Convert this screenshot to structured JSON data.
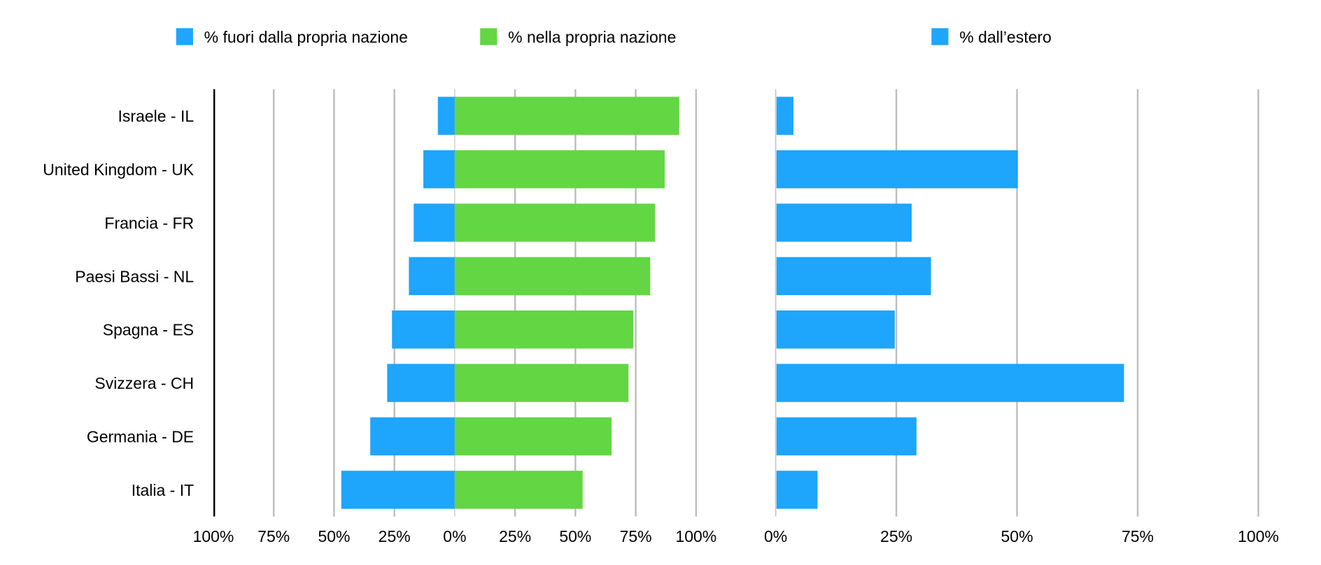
{
  "chart_data": [
    {
      "type": "bar",
      "orientation": "horizontal-diverging",
      "categories": [
        "Israele - IL",
        "United Kingdom - UK",
        "Francia - FR",
        "Paesi Bassi - NL",
        "Spagna - ES",
        "Svizzera - CH",
        "Germania - DE",
        "Italia - IT"
      ],
      "series": [
        {
          "name": "% fuori dalla propria nazione",
          "color": "#1EA5FC",
          "direction": "left",
          "values": [
            7,
            13,
            17,
            19,
            26,
            28,
            35,
            47
          ]
        },
        {
          "name": "% nella propria nazione",
          "color": "#63D643",
          "direction": "right",
          "values": [
            93,
            87,
            83,
            81,
            74,
            72,
            65,
            53
          ]
        }
      ],
      "xlim": [
        -100,
        100
      ],
      "xticks": [
        "100%",
        "75%",
        "50%",
        "25%",
        "0%",
        "25%",
        "50%",
        "75%",
        "100%"
      ],
      "grid": true,
      "legend": "top-left"
    },
    {
      "type": "bar",
      "orientation": "horizontal",
      "categories": [
        "Israele - IL",
        "United Kingdom - UK",
        "Francia - FR",
        "Paesi Bassi - NL",
        "Spagna - ES",
        "Svizzera - CH",
        "Germania - DE",
        "Italia - IT"
      ],
      "series": [
        {
          "name": "% dall’estero",
          "color": "#1EA5FC",
          "values": [
            3.5,
            50,
            28,
            32,
            24.5,
            72,
            29,
            8.5
          ]
        }
      ],
      "xlim": [
        0,
        100
      ],
      "xticks": [
        "0%",
        "25%",
        "50%",
        "75%",
        "100%"
      ],
      "grid": true,
      "legend": "top"
    }
  ]
}
